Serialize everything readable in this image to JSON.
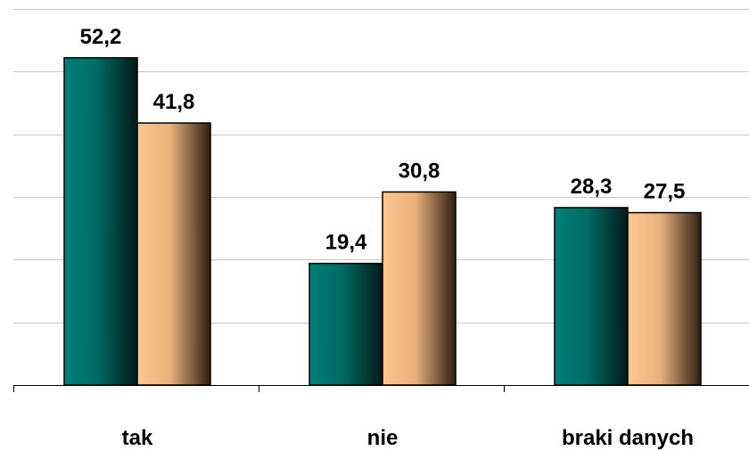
{
  "chart_data": {
    "type": "bar",
    "title": "",
    "xlabel": "",
    "ylabel": "",
    "categories": [
      "tak",
      "nie",
      "braki danych"
    ],
    "series": [
      {
        "values": [
          52.2,
          19.4,
          28.3
        ],
        "color": "#007a73"
      },
      {
        "values": [
          41.8,
          30.8,
          27.5
        ],
        "color": "#f6c38f"
      }
    ],
    "value_labels": [
      [
        "52,2",
        "19,4",
        "28,3"
      ],
      [
        "41,8",
        "30,8",
        "27,5"
      ]
    ],
    "ylim": [
      0,
      60
    ],
    "grid": true,
    "legend": "none"
  }
}
